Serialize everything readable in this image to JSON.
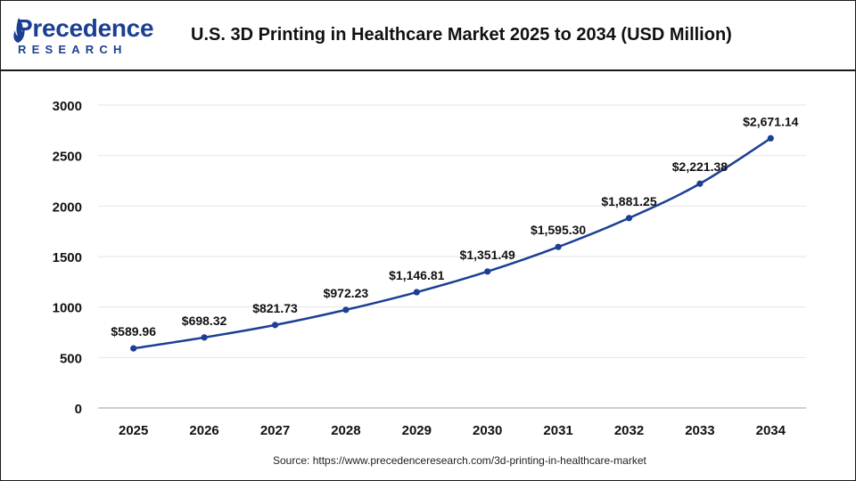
{
  "header": {
    "logo_word": "Precedence",
    "logo_sub": "RESEARCH",
    "title": "U.S. 3D Printing in Healthcare Market 2025 to 2034 (USD Million)"
  },
  "footer": {
    "source": "Source: https://www.precedenceresearch.com/3d-printing-in-healthcare-market"
  },
  "colors": {
    "line": "#1c3f94",
    "brand": "#1c3f94",
    "text": "#111111"
  },
  "chart_data": {
    "type": "line",
    "title": "U.S. 3D Printing in Healthcare Market 2025 to 2034 (USD Million)",
    "xlabel": "",
    "ylabel": "",
    "categories": [
      "2025",
      "2026",
      "2027",
      "2028",
      "2029",
      "2030",
      "2031",
      "2032",
      "2033",
      "2034"
    ],
    "values": [
      589.96,
      698.32,
      821.73,
      972.23,
      1146.81,
      1351.49,
      1595.3,
      1881.25,
      2221.38,
      2671.14
    ],
    "data_labels": [
      "$589.96",
      "$698.32",
      "$821.73",
      "$972.23",
      "$1,146.81",
      "$1,351.49",
      "$1,595.30",
      "$1,881.25",
      "$2,221.38",
      "$2,671.14"
    ],
    "yticks": [
      0,
      500,
      1000,
      1500,
      2000,
      2500,
      3000
    ],
    "ylim": [
      0,
      3000
    ],
    "grid": true,
    "legend": "none"
  }
}
